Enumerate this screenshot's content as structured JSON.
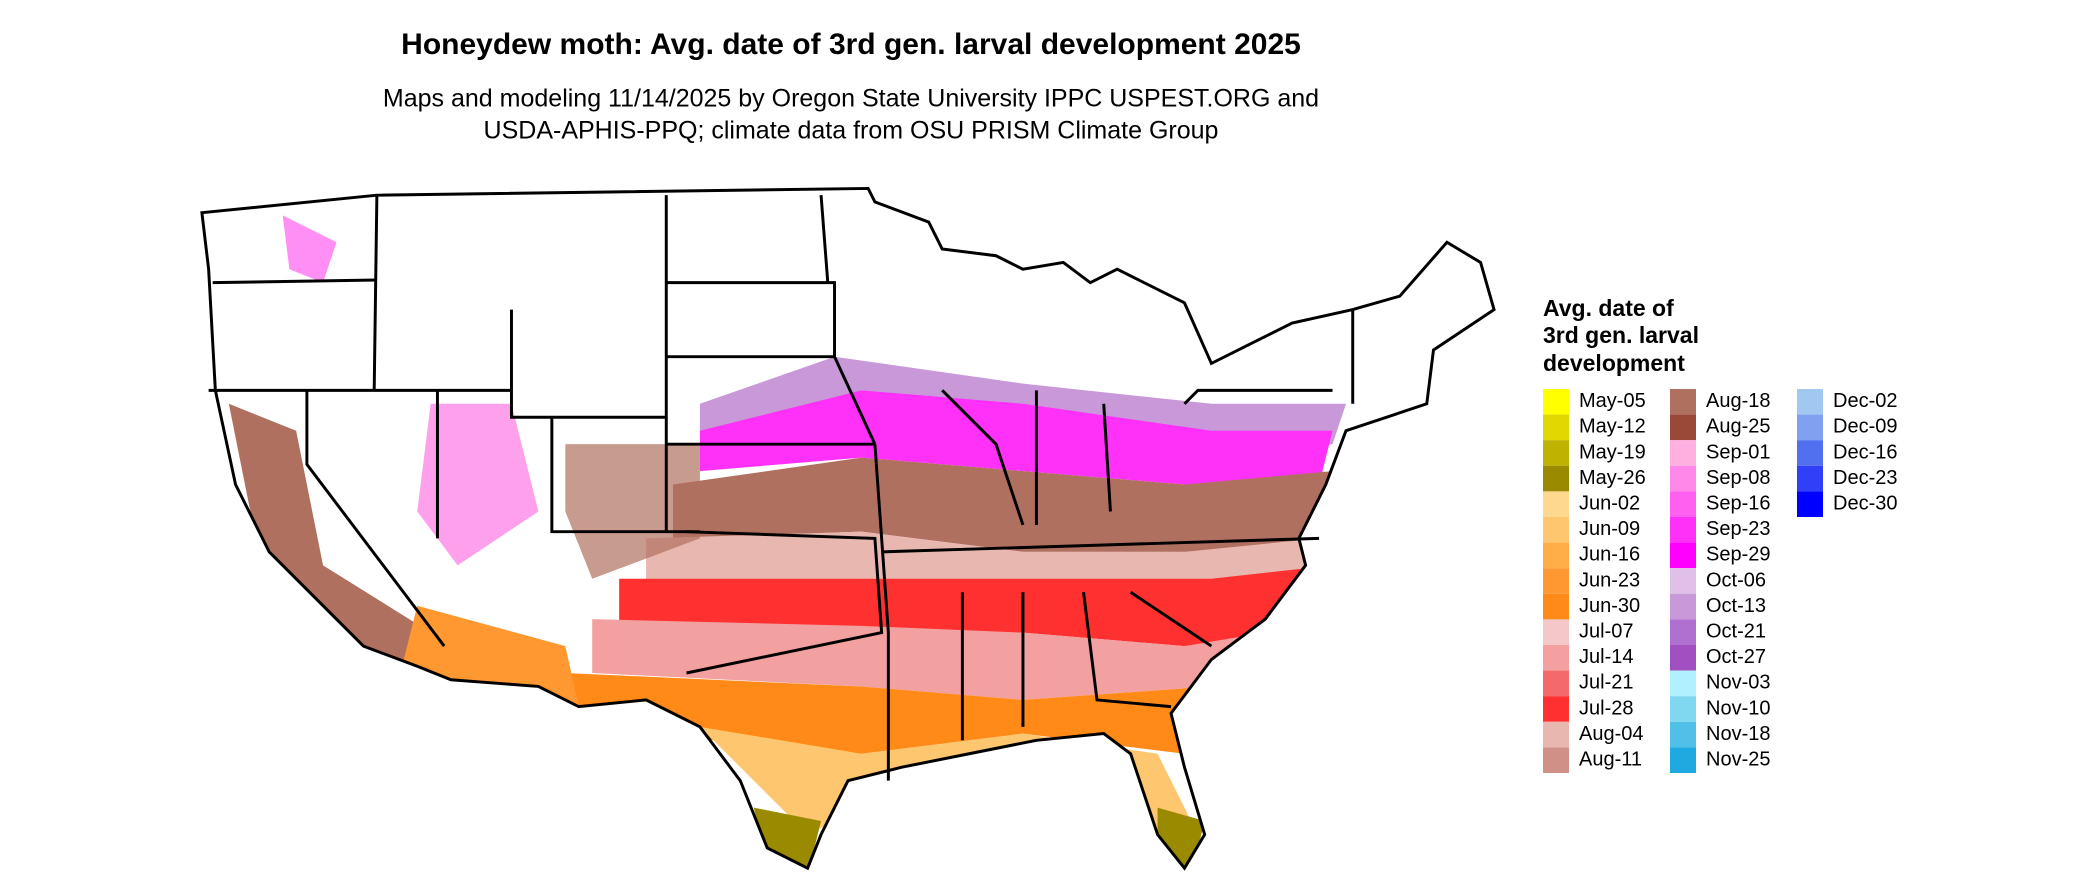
{
  "title": "Honeydew moth: Avg. date of 3rd gen. larval development 2025",
  "subtitle": [
    "Maps and modeling 11/14/2025 by Oregon State University IPPC USPEST.ORG and",
    "USDA-APHIS-PPQ; climate data from OSU PRISM Climate Group"
  ],
  "legend": {
    "title": [
      "Avg. date of",
      "3rd gen. larval",
      "development"
    ],
    "items": [
      {
        "label": "May-05",
        "color": "#ffff00"
      },
      {
        "label": "May-12",
        "color": "#e0d800"
      },
      {
        "label": "May-19",
        "color": "#bfb200"
      },
      {
        "label": "May-26",
        "color": "#9a8a00"
      },
      {
        "label": "Jun-02",
        "color": "#ffd890"
      },
      {
        "label": "Jun-09",
        "color": "#ffc670"
      },
      {
        "label": "Jun-16",
        "color": "#ffae48"
      },
      {
        "label": "Jun-23",
        "color": "#ff9830"
      },
      {
        "label": "Jun-30",
        "color": "#ff8a18"
      },
      {
        "label": "Jul-07",
        "color": "#f4c8c8"
      },
      {
        "label": "Jul-14",
        "color": "#f2a0a0"
      },
      {
        "label": "Jul-21",
        "color": "#f46a6a"
      },
      {
        "label": "Jul-28",
        "color": "#ff3030"
      },
      {
        "label": "Aug-04",
        "color": "#e8b8b0"
      },
      {
        "label": "Aug-11",
        "color": "#d09088"
      },
      {
        "label": "Aug-18",
        "color": "#b07060"
      },
      {
        "label": "Aug-25",
        "color": "#9a4838"
      },
      {
        "label": "Sep-01",
        "color": "#ffb0e0"
      },
      {
        "label": "Sep-08",
        "color": "#ff88e8"
      },
      {
        "label": "Sep-16",
        "color": "#ff60f0"
      },
      {
        "label": "Sep-23",
        "color": "#ff30f8"
      },
      {
        "label": "Sep-29",
        "color": "#ff00ff"
      },
      {
        "label": "Oct-06",
        "color": "#e0c0e8"
      },
      {
        "label": "Oct-13",
        "color": "#c898d8"
      },
      {
        "label": "Oct-21",
        "color": "#b070d0"
      },
      {
        "label": "Oct-27",
        "color": "#a050c0"
      },
      {
        "label": "Nov-03",
        "color": "#b0f0ff"
      },
      {
        "label": "Nov-10",
        "color": "#80d8f0"
      },
      {
        "label": "Nov-18",
        "color": "#50c0e8"
      },
      {
        "label": "Nov-25",
        "color": "#20a8e0"
      },
      {
        "label": "Dec-02",
        "color": "#a0c8f0"
      },
      {
        "label": "Dec-09",
        "color": "#80a0f0"
      },
      {
        "label": "Dec-16",
        "color": "#5070f0"
      },
      {
        "label": "Dec-23",
        "color": "#3040f8"
      },
      {
        "label": "Dec-30",
        "color": "#0000ff"
      }
    ]
  }
}
